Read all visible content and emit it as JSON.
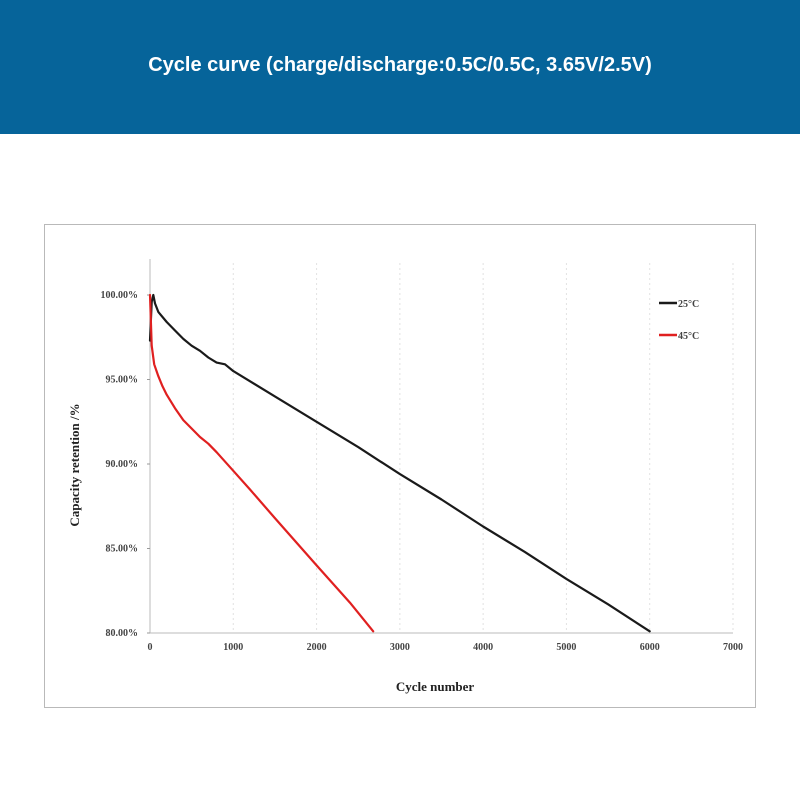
{
  "header": {
    "title": "Cycle curve (charge/discharge:0.5C/0.5C, 3.65V/2.5V)",
    "background_color": "#06649a"
  },
  "chart_data": {
    "type": "line",
    "xlabel": "Cycle number",
    "ylabel": "Capacity retention /%",
    "xlim": [
      0,
      7000
    ],
    "ylim": [
      80,
      100
    ],
    "x_ticks": [
      "0",
      "1000",
      "2000",
      "3000",
      "4000",
      "5000",
      "6000",
      "7000"
    ],
    "y_ticks": [
      "80.00%",
      "85.00%",
      "90.00%",
      "95.00%",
      "100.00%"
    ],
    "grid": "vertical dashed",
    "legend_position": "top-right",
    "series": [
      {
        "name": "25°C",
        "color": "#1a1a1a",
        "x": [
          0,
          20,
          40,
          60,
          100,
          200,
          300,
          400,
          500,
          600,
          700,
          800,
          900,
          1000,
          1500,
          2000,
          2500,
          3000,
          3500,
          4000,
          4500,
          5000,
          5500,
          6000
        ],
        "y": [
          97.3,
          99.6,
          100.0,
          99.5,
          99.0,
          98.4,
          97.9,
          97.4,
          97.0,
          96.7,
          96.3,
          96.0,
          95.9,
          95.5,
          94.0,
          92.5,
          91.0,
          89.4,
          87.9,
          86.3,
          84.8,
          83.2,
          81.7,
          80.1
        ]
      },
      {
        "name": "45°C",
        "color": "#e02020",
        "x": [
          0,
          20,
          50,
          100,
          150,
          200,
          300,
          400,
          500,
          600,
          700,
          800,
          1000,
          1200,
          1500,
          2000,
          2400,
          2680
        ],
        "y": [
          100.0,
          97.0,
          95.9,
          95.2,
          94.6,
          94.1,
          93.3,
          92.6,
          92.1,
          91.6,
          91.2,
          90.7,
          89.6,
          88.5,
          86.8,
          84.0,
          81.8,
          80.1
        ]
      }
    ]
  }
}
